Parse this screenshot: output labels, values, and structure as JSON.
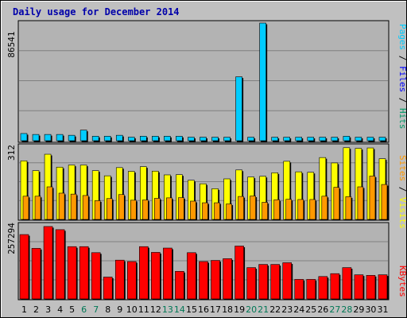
{
  "chart_data": [
    {
      "type": "bar",
      "title": "Daily usage for December 2014",
      "categories": [
        "1",
        "2",
        "3",
        "4",
        "5",
        "6",
        "7",
        "8",
        "9",
        "10",
        "11",
        "12",
        "13",
        "14",
        "15",
        "16",
        "17",
        "18",
        "19",
        "20",
        "21",
        "22",
        "23",
        "24",
        "25",
        "26",
        "27",
        "28",
        "29",
        "30",
        "31"
      ],
      "weekend_days": [
        "6",
        "7",
        "13",
        "14",
        "20",
        "21",
        "27",
        "28"
      ],
      "ymax_label": "86541",
      "ylim": [
        0,
        86541
      ],
      "right_label": {
        "pages": "Pages",
        "sep1": " / ",
        "files": "Files",
        "sep2": " / ",
        "hits": "Hits"
      },
      "series": [
        {
          "name": "Hits",
          "color": "#00ccff",
          "values": [
            5300,
            4600,
            4600,
            4600,
            4000,
            7800,
            3300,
            3300,
            4000,
            2600,
            3300,
            3300,
            3300,
            3300,
            2600,
            2600,
            2600,
            2600,
            47000,
            2600,
            86541,
            2600,
            2600,
            2600,
            2600,
            2600,
            2600,
            3300,
            2600,
            2600,
            2600
          ]
        }
      ]
    },
    {
      "type": "bar",
      "ymax_label": "312",
      "ylim": [
        0,
        312
      ],
      "right_label": {
        "sites": "Sites",
        "sep": " / ",
        "visits": "Visits"
      },
      "series": [
        {
          "name": "Visits",
          "color": "#ffff00",
          "values": [
            250,
            208,
            278,
            223,
            232,
            232,
            208,
            186,
            221,
            205,
            225,
            206,
            190,
            191,
            167,
            152,
            131,
            173,
            211,
            181,
            184,
            199,
            248,
            203,
            201,
            264,
            241,
            306,
            303,
            305,
            259
          ]
        },
        {
          "name": "Sites",
          "color": "#ff9900",
          "values": [
            99,
            99,
            139,
            112,
            108,
            102,
            80,
            89,
            106,
            82,
            83,
            90,
            92,
            93,
            78,
            71,
            71,
            66,
            98,
            100,
            73,
            84,
            86,
            85,
            85,
            99,
            137,
            97,
            139,
            185,
            149
          ]
        }
      ]
    },
    {
      "type": "bar",
      "ymax_label": "257294",
      "ylim": [
        0,
        257294
      ],
      "right_label": {
        "kbytes": "KBytes"
      },
      "series": [
        {
          "name": "KBytes",
          "color": "#ff0000",
          "values": [
            224000,
            176000,
            252000,
            241000,
            182000,
            182000,
            161000,
            76000,
            135000,
            130000,
            182000,
            162000,
            177000,
            96000,
            161000,
            130000,
            134000,
            140000,
            184000,
            109000,
            120000,
            120000,
            126000,
            68000,
            68000,
            78000,
            88000,
            109000,
            84000,
            82000,
            84000
          ]
        }
      ]
    }
  ]
}
